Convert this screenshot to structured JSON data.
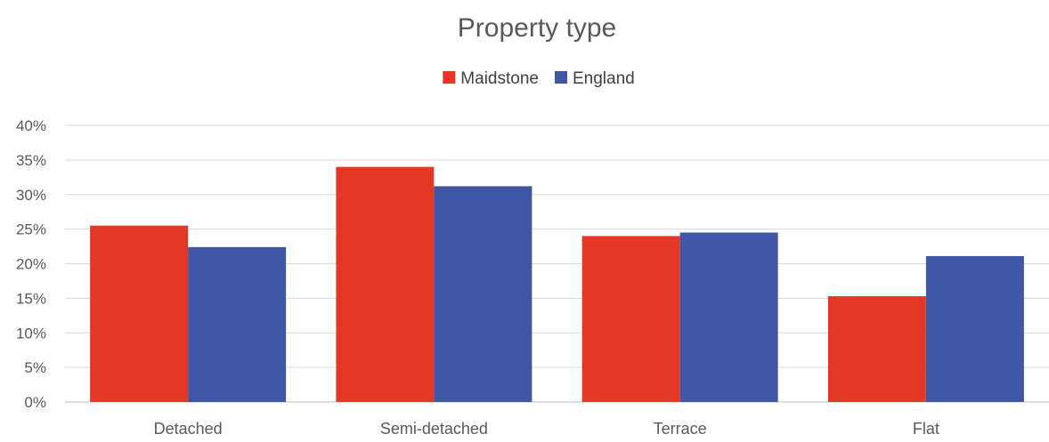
{
  "chart_data": {
    "type": "bar",
    "title": "Property type",
    "categories": [
      "Detached",
      "Semi-detached",
      "Terrace",
      "Flat"
    ],
    "series": [
      {
        "name": "Maidstone",
        "color": "#e33826",
        "values": [
          25.5,
          34.0,
          24.0,
          15.3
        ]
      },
      {
        "name": "England",
        "color": "#3e56a4",
        "values": [
          22.4,
          31.2,
          24.5,
          21.1
        ]
      }
    ],
    "ylim": [
      0,
      40
    ],
    "yticks": [
      0,
      5,
      10,
      15,
      20,
      25,
      30,
      35,
      40
    ],
    "ytick_suffix": "%",
    "grid": true,
    "legend_position": "top-center"
  }
}
